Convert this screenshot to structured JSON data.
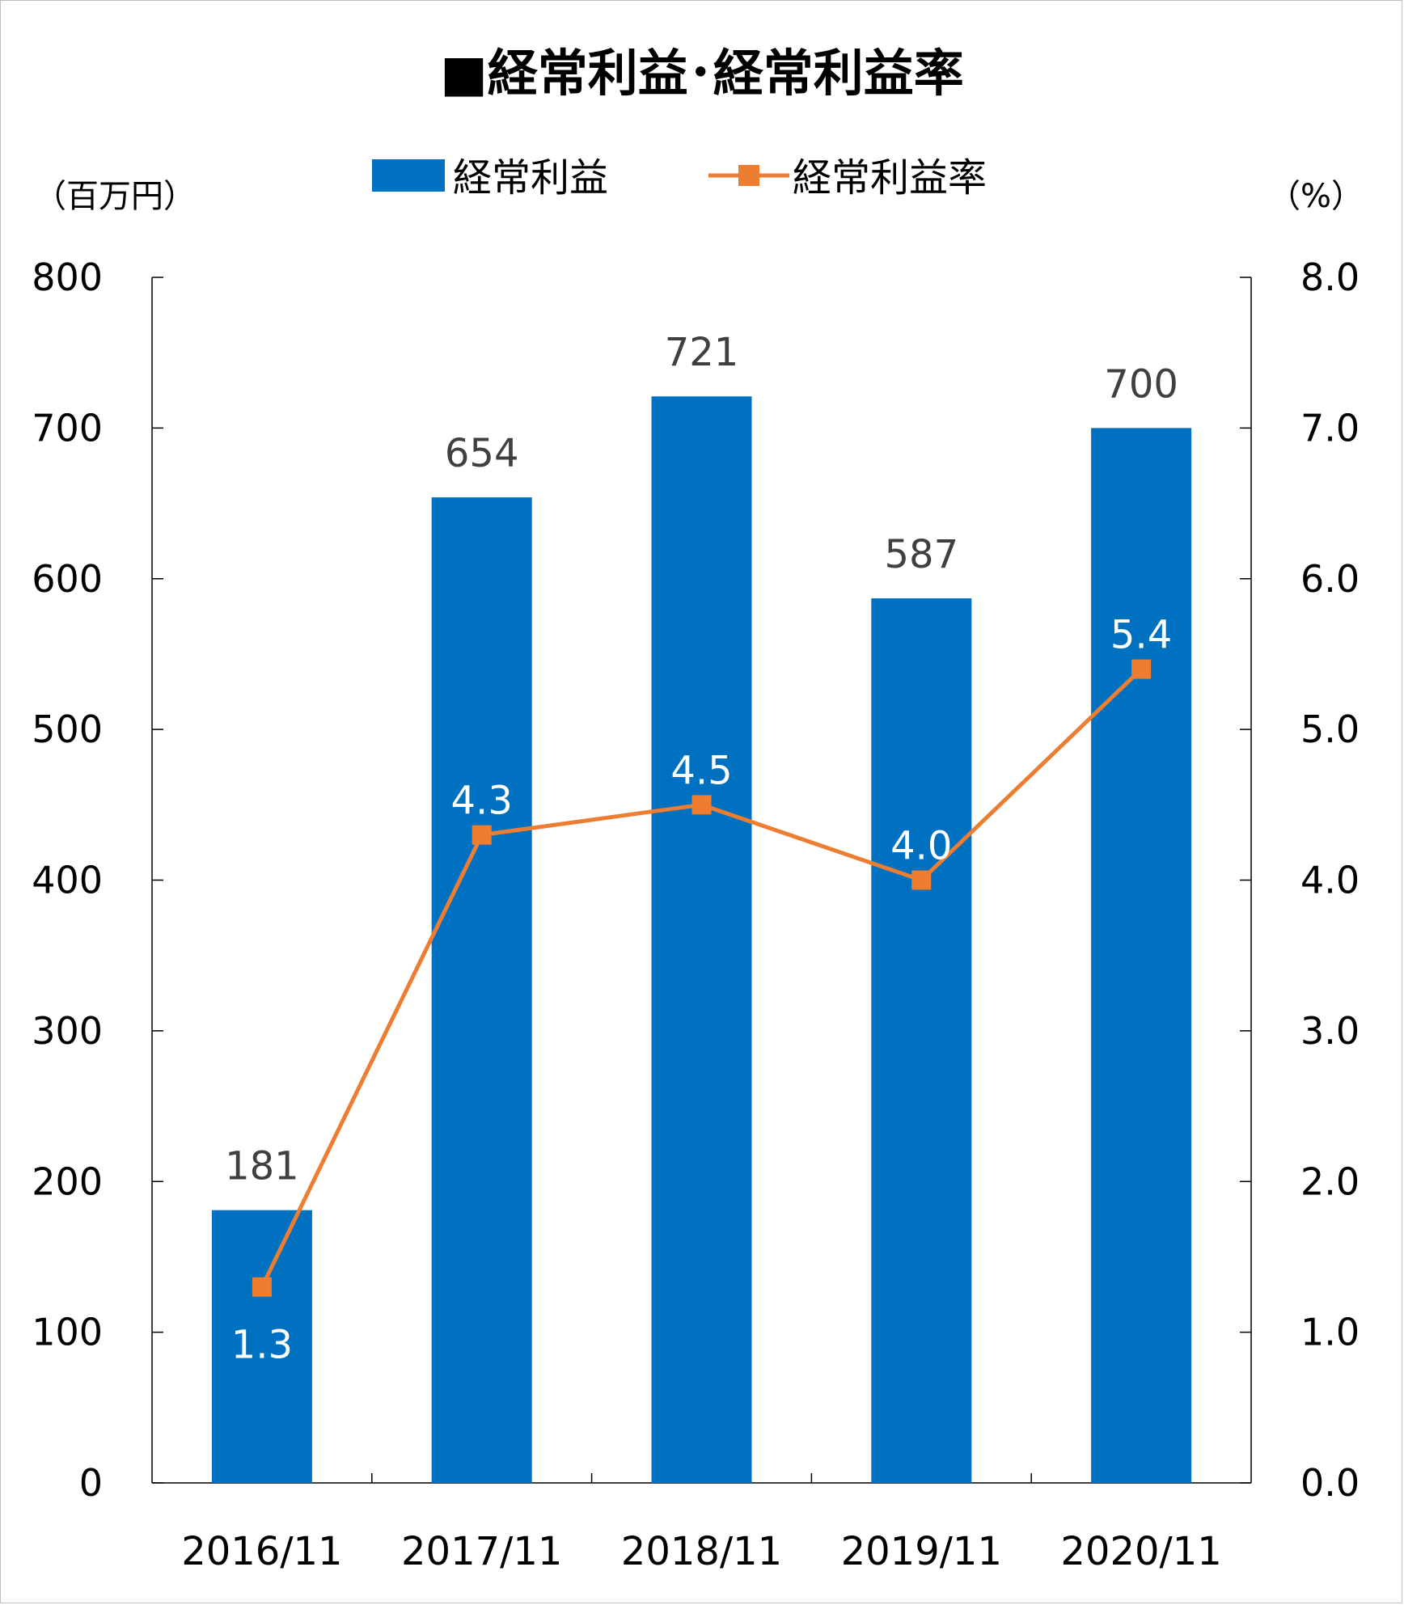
{
  "chart_data": {
    "type": "bar",
    "title": "■経常利益･経常利益率",
    "categories": [
      "2016/11",
      "2017/11",
      "2018/11",
      "2019/11",
      "2020/11"
    ],
    "series": [
      {
        "name": "経常利益",
        "type": "bar",
        "axis": "left",
        "color": "#0070C0",
        "values": [
          181,
          654,
          721,
          587,
          700
        ],
        "labels": [
          "181",
          "654",
          "721",
          "587",
          "700"
        ]
      },
      {
        "name": "経常利益率",
        "type": "line",
        "axis": "right",
        "color": "#ED7D31",
        "values": [
          1.3,
          4.3,
          4.5,
          4.0,
          5.4
        ],
        "labels": [
          "1.3",
          "4.3",
          "4.5",
          "4.0",
          "5.4"
        ]
      }
    ],
    "y_left": {
      "unit": "（百万円）",
      "min": 0,
      "max": 800,
      "ticks": [
        "0",
        "100",
        "200",
        "300",
        "400",
        "500",
        "600",
        "700",
        "800"
      ]
    },
    "y_right": {
      "unit": "（%）",
      "min": 0,
      "max": 8,
      "ticks": [
        "0.0",
        "1.0",
        "2.0",
        "3.0",
        "4.0",
        "5.0",
        "6.0",
        "7.0",
        "8.0"
      ]
    },
    "grid": false,
    "legend_position": "top"
  }
}
